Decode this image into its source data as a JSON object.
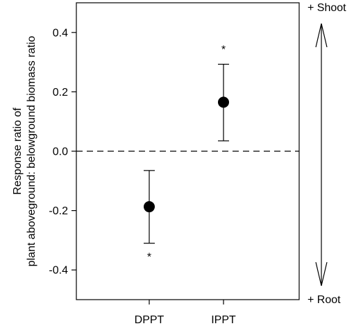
{
  "chart_data": {
    "type": "scatter",
    "title": "",
    "xlabel": "",
    "ylabel_lines": [
      "Response ratio of",
      "plant aboveground: belowground biomass ratio"
    ],
    "ylim": [
      -0.5,
      0.5
    ],
    "yticks": [
      -0.4,
      -0.2,
      0.0,
      0.2,
      0.4
    ],
    "ytick_labels": [
      "-0.4",
      "-0.2",
      "0.0",
      "0.2",
      "0.4"
    ],
    "categories": [
      "DPPT",
      "IPPT"
    ],
    "points": [
      {
        "category": "DPPT",
        "y": -0.187,
        "lower": -0.31,
        "upper": -0.065,
        "significance": "*"
      },
      {
        "category": "IPPT",
        "y": 0.165,
        "lower": 0.035,
        "upper": 0.293,
        "significance": "*"
      }
    ],
    "reference_line": {
      "y": 0.0,
      "style": "dashed"
    },
    "side_arrow": {
      "top_label": "+ Shoot",
      "bottom_label": "+ Root"
    },
    "grid": false
  }
}
